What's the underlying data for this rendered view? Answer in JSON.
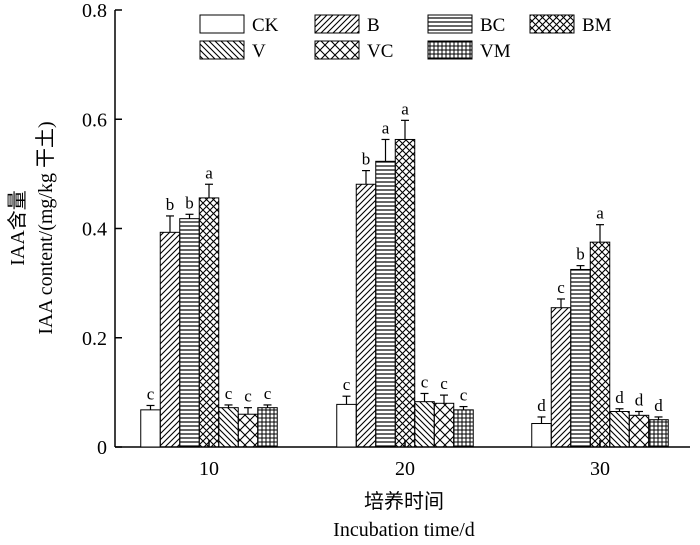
{
  "chart_data": {
    "type": "bar",
    "categories": [
      "10",
      "20",
      "30"
    ],
    "series": [
      {
        "name": "CK",
        "pattern": "none",
        "values": [
          0.068,
          0.078,
          0.043
        ],
        "errors": [
          0.008,
          0.015,
          0.012
        ],
        "sig": [
          "c",
          "c",
          "d"
        ]
      },
      {
        "name": "B",
        "pattern": "diag-up",
        "values": [
          0.393,
          0.481,
          0.255
        ],
        "errors": [
          0.03,
          0.025,
          0.016
        ],
        "sig": [
          "b",
          "b",
          "c"
        ]
      },
      {
        "name": "BC",
        "pattern": "horiz",
        "values": [
          0.418,
          0.523,
          0.325
        ],
        "errors": [
          0.008,
          0.04,
          0.007
        ],
        "sig": [
          "b",
          "a",
          "b"
        ]
      },
      {
        "name": "BM",
        "pattern": "crosshatch",
        "values": [
          0.456,
          0.563,
          0.375
        ],
        "errors": [
          0.025,
          0.035,
          0.032
        ],
        "sig": [
          "a",
          "a",
          "a"
        ]
      },
      {
        "name": "V",
        "pattern": "diag-down",
        "values": [
          0.072,
          0.083,
          0.065
        ],
        "errors": [
          0.005,
          0.015,
          0.005
        ],
        "sig": [
          "c",
          "c",
          "d"
        ]
      },
      {
        "name": "VC",
        "pattern": "crosshatch-wide",
        "values": [
          0.06,
          0.08,
          0.058
        ],
        "errors": [
          0.012,
          0.015,
          0.007
        ],
        "sig": [
          "c",
          "c",
          "d"
        ]
      },
      {
        "name": "VM",
        "pattern": "grid",
        "values": [
          0.072,
          0.068,
          0.05
        ],
        "errors": [
          0.005,
          0.006,
          0.005
        ],
        "sig": [
          "c",
          "c",
          "d"
        ]
      }
    ],
    "ylim": [
      0,
      0.8
    ],
    "yticks": [
      "0",
      "0.2",
      "0.4",
      "0.6",
      "0.8"
    ],
    "ylabel_cn": "IAA含量",
    "ylabel_en": "IAA content/(mg/kg 干土)",
    "xlabel_cn": "培养时间",
    "xlabel_en": "Incubation time/d",
    "legend_placement": "top-right",
    "grid": false
  }
}
